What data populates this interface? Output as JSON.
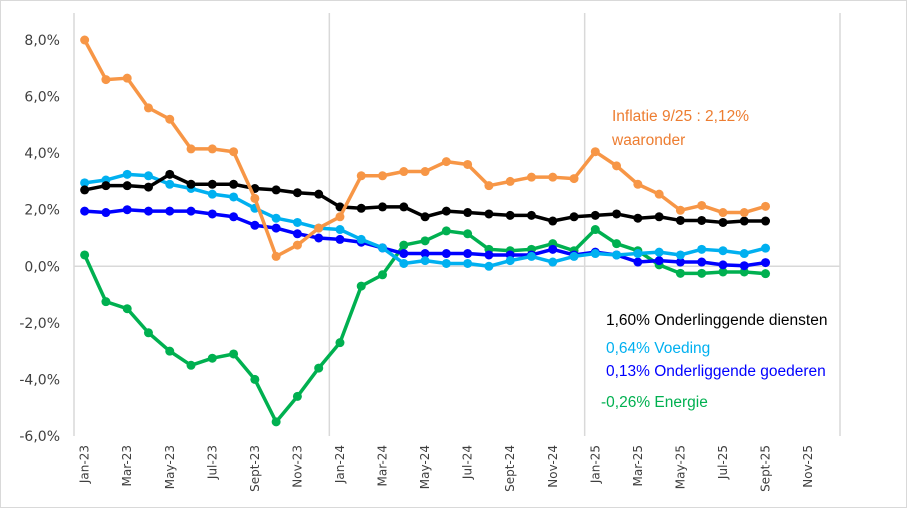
{
  "chart_data": {
    "type": "line",
    "title": "",
    "xlabel": "",
    "ylabel": "",
    "ylim": [
      -6.0,
      8.0
    ],
    "yticks": [
      "8,0%",
      "6,0%",
      "4,0%",
      "2,0%",
      "0,0%",
      "-2,0%",
      "-4,0%",
      "-6,0%"
    ],
    "ytick_values": [
      8,
      6,
      4,
      2,
      0,
      -2,
      -4,
      -6
    ],
    "categories": [
      "Jan-23",
      "Feb-23",
      "Mar-23",
      "Apr-23",
      "May-23",
      "Jun-23",
      "Jul-23",
      "Aug-23",
      "Sept-23",
      "Oct-23",
      "Nov-23",
      "Dec-23",
      "Jan-24",
      "Feb-24",
      "Mar-24",
      "Apr-24",
      "May-24",
      "Jun-24",
      "Jul-24",
      "Aug-24",
      "Sept-24",
      "Oct-24",
      "Nov-24",
      "Dec-24",
      "Jan-25",
      "Feb-25",
      "Mar-25",
      "Apr-25",
      "May-25",
      "Jun-25",
      "Jul-25",
      "Aug-25",
      "Sept-25",
      "Oct-25",
      "Nov-25",
      "Dec-25"
    ],
    "xtick_labels": [
      "Jan-23",
      "Mar-23",
      "May-23",
      "Jul-23",
      "Sept-23",
      "Nov-23",
      "Jan-24",
      "Mar-24",
      "May-24",
      "Jul-24",
      "Sept-24",
      "Nov-24",
      "Jan-25",
      "Mar-25",
      "May-25",
      "Jul-25",
      "Sept-25",
      "Nov-25"
    ],
    "xtick_label_indices": [
      0,
      2,
      4,
      6,
      8,
      10,
      12,
      14,
      16,
      18,
      20,
      22,
      24,
      26,
      28,
      30,
      32,
      34
    ],
    "grid": "vertical lines at year boundaries, horizontal line at 0%",
    "series": [
      {
        "name": "Inflatie",
        "color": "#F79646",
        "values": [
          8.0,
          6.6,
          6.65,
          5.6,
          5.2,
          4.15,
          4.15,
          4.05,
          2.4,
          0.35,
          0.75,
          1.35,
          1.75,
          3.2,
          3.2,
          3.35,
          3.35,
          3.7,
          3.6,
          2.85,
          3.0,
          3.15,
          3.15,
          3.1,
          4.05,
          3.55,
          2.9,
          2.55,
          1.98,
          2.15,
          1.9,
          1.9,
          2.12
        ]
      },
      {
        "name": "Onderliggende diensten",
        "color": "#000000",
        "values": [
          2.7,
          2.85,
          2.85,
          2.8,
          3.25,
          2.9,
          2.9,
          2.9,
          2.75,
          2.7,
          2.6,
          2.55,
          2.1,
          2.05,
          2.1,
          2.1,
          1.75,
          1.95,
          1.9,
          1.85,
          1.8,
          1.8,
          1.6,
          1.75,
          1.8,
          1.85,
          1.7,
          1.75,
          1.62,
          1.62,
          1.55,
          1.6,
          1.6
        ]
      },
      {
        "name": "Voeding",
        "color": "#00B0F0",
        "values": [
          2.95,
          3.05,
          3.25,
          3.2,
          2.9,
          2.75,
          2.55,
          2.45,
          2.05,
          1.7,
          1.55,
          1.35,
          1.3,
          0.95,
          0.65,
          0.1,
          0.2,
          0.1,
          0.1,
          0.0,
          0.2,
          0.35,
          0.15,
          0.35,
          0.45,
          0.4,
          0.45,
          0.5,
          0.4,
          0.6,
          0.55,
          0.45,
          0.64
        ]
      },
      {
        "name": "Onderliggende goederen",
        "color": "#0000FF",
        "values": [
          1.95,
          1.9,
          2.0,
          1.95,
          1.95,
          1.95,
          1.85,
          1.75,
          1.45,
          1.35,
          1.15,
          1.0,
          0.95,
          0.85,
          0.65,
          0.45,
          0.45,
          0.45,
          0.45,
          0.4,
          0.4,
          0.4,
          0.6,
          0.4,
          0.5,
          0.4,
          0.15,
          0.2,
          0.15,
          0.15,
          0.05,
          0.02,
          0.13
        ]
      },
      {
        "name": "Energie",
        "color": "#00B050",
        "values": [
          0.4,
          -1.25,
          -1.5,
          -2.35,
          -3.0,
          -3.5,
          -3.25,
          -3.1,
          -4.0,
          -5.5,
          -4.6,
          -3.6,
          -2.7,
          -0.7,
          -0.3,
          0.75,
          0.9,
          1.25,
          1.15,
          0.6,
          0.55,
          0.6,
          0.8,
          0.55,
          1.3,
          0.8,
          0.55,
          0.05,
          -0.25,
          -0.25,
          -0.2,
          -0.2,
          -0.26
        ]
      }
    ],
    "annotations": [
      {
        "id": "inflatie_line1",
        "text": "Inflatie 9/25 : 2,12%",
        "color": "#ED7D31"
      },
      {
        "id": "inflatie_line2",
        "text": "waaronder",
        "color": "#ED7D31"
      },
      {
        "id": "diensten",
        "text": "1,60% Onderlinggende  diensten",
        "color": "#000000"
      },
      {
        "id": "voeding",
        "text": "0,64% Voeding",
        "color": "#00B0F0"
      },
      {
        "id": "goederen",
        "text": "0,13% Onderliggende goederen",
        "color": "#0000FF"
      },
      {
        "id": "energie",
        "text": "-0,26% Energie",
        "color": "#00B050"
      }
    ]
  }
}
